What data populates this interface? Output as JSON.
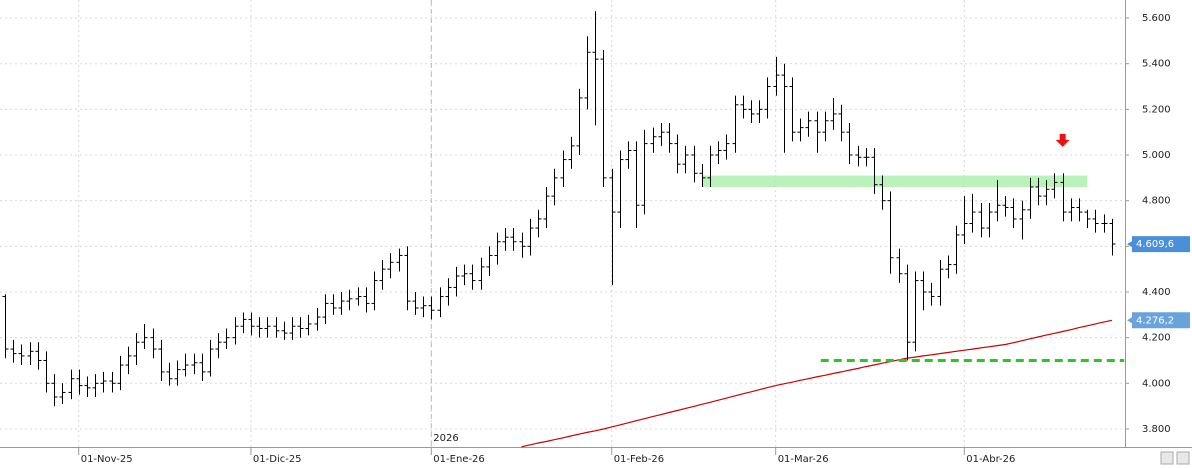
{
  "chart_data": {
    "type": "ohlc",
    "ylim": [
      3721,
      5679
    ],
    "xlim": [
      -0.6,
      136.6
    ],
    "yticks": [
      {
        "value": 3800,
        "label": "3.800"
      },
      {
        "value": 4000,
        "label": "4.000"
      },
      {
        "value": 4200,
        "label": "4.200"
      },
      {
        "value": 4400,
        "label": "4.400"
      },
      {
        "value": 4600,
        "label": "4.600"
      },
      {
        "value": 4800,
        "label": "4.800"
      },
      {
        "value": 5000,
        "label": "5.000"
      },
      {
        "value": 5200,
        "label": "5.200"
      },
      {
        "value": 5400,
        "label": "5.400"
      },
      {
        "value": 5600,
        "label": "5.600"
      }
    ],
    "xticks": [
      {
        "value": 9,
        "label": "01-Nov-25"
      },
      {
        "value": 30,
        "label": "01-Dic-25"
      },
      {
        "value": 52,
        "label": "01-Ene-26"
      },
      {
        "value": 74,
        "label": "01-Feb-26"
      },
      {
        "value": 94,
        "label": "01-Mar-26"
      },
      {
        "value": 117,
        "label": "01-Abr-26"
      }
    ],
    "year_marker": {
      "x": 52,
      "label": "2026"
    },
    "grid": true,
    "color": "#000000",
    "open": [
      4380,
      4150,
      4130,
      4120,
      4140,
      4100,
      4000,
      3940,
      3960,
      4020,
      3990,
      3980,
      4000,
      4010,
      4000,
      4080,
      4120,
      4180,
      4200,
      4150,
      4050,
      4020,
      4060,
      4080,
      4090,
      4050,
      4150,
      4180,
      4200,
      4250,
      4280,
      4250,
      4240,
      4250,
      4230,
      4220,
      4250,
      4240,
      4260,
      4290,
      4350,
      4330,
      4360,
      4370,
      4380,
      4350,
      4450,
      4500,
      4530,
      4560,
      4360,
      4330,
      4340,
      4320,
      4380,
      4420,
      4470,
      4480,
      4450,
      4510,
      4560,
      4620,
      4640,
      4620,
      4600,
      4680,
      4720,
      4820,
      4900,
      4980,
      5040,
      5250,
      5450,
      5420,
      4900,
      4750,
      4980,
      5020,
      4780,
      5050,
      5080,
      5100,
      5050,
      4960,
      5000,
      4920,
      4900,
      5000,
      5020,
      5050,
      5220,
      5200,
      5180,
      5200,
      5300,
      5350,
      5300,
      5100,
      5120,
      5150,
      5100,
      5150,
      5180,
      5100,
      5000,
      4990,
      4990,
      4870,
      4800,
      4550,
      4480,
      4180,
      4450,
      4400,
      4380,
      4500,
      4520,
      4650,
      4700,
      4750,
      4680,
      4750,
      4780,
      4770,
      4720,
      4760,
      4860,
      4820,
      4850,
      4880,
      4750,
      4770,
      4750,
      4720,
      4700,
      4700
    ],
    "high": [
      4390,
      4190,
      4170,
      4180,
      4180,
      4140,
      4040,
      4000,
      4060,
      4060,
      4030,
      4040,
      4050,
      4050,
      4120,
      4160,
      4220,
      4260,
      4240,
      4190,
      4090,
      4100,
      4130,
      4130,
      4130,
      4190,
      4220,
      4240,
      4290,
      4310,
      4310,
      4290,
      4290,
      4290,
      4270,
      4290,
      4290,
      4300,
      4330,
      4390,
      4390,
      4400,
      4410,
      4420,
      4420,
      4490,
      4540,
      4570,
      4590,
      4600,
      4400,
      4380,
      4380,
      4420,
      4460,
      4510,
      4520,
      4520,
      4550,
      4600,
      4660,
      4680,
      4680,
      4660,
      4720,
      4760,
      4860,
      4940,
      5020,
      5080,
      5290,
      5520,
      5630,
      5460,
      4940,
      5020,
      5060,
      5060,
      5110,
      5120,
      5140,
      5140,
      5090,
      5040,
      5040,
      4960,
      5040,
      5060,
      5090,
      5260,
      5260,
      5240,
      5240,
      5340,
      5430,
      5400,
      5340,
      5160,
      5190,
      5190,
      5190,
      5250,
      5220,
      5140,
      5040,
      5030,
      5030,
      4910,
      4840,
      4590,
      4520,
      4490,
      4490,
      4440,
      4540,
      4560,
      4690,
      4820,
      4830,
      4790,
      4790,
      4890,
      4820,
      4810,
      4800,
      4900,
      4900,
      4890,
      4920,
      4920,
      4810,
      4810,
      4760,
      4760,
      4740,
      4720
    ],
    "low": [
      4110,
      4090,
      4080,
      4080,
      4060,
      3960,
      3900,
      3910,
      3930,
      3950,
      3940,
      3940,
      3960,
      3960,
      3970,
      4040,
      4080,
      4150,
      4110,
      4010,
      3990,
      3990,
      4030,
      4040,
      4010,
      4030,
      4110,
      4150,
      4170,
      4220,
      4210,
      4200,
      4200,
      4200,
      4190,
      4190,
      4200,
      4210,
      4230,
      4260,
      4300,
      4300,
      4320,
      4340,
      4310,
      4320,
      4410,
      4460,
      4490,
      4320,
      4300,
      4290,
      4280,
      4290,
      4340,
      4380,
      4430,
      4410,
      4410,
      4470,
      4520,
      4580,
      4580,
      4550,
      4560,
      4640,
      4680,
      4780,
      4860,
      4940,
      5000,
      5200,
      5130,
      4860,
      4430,
      4680,
      4940,
      4680,
      4740,
      5010,
      5040,
      5010,
      4920,
      4920,
      4880,
      4860,
      4860,
      4960,
      4980,
      5010,
      5160,
      5140,
      5140,
      5160,
      5260,
      5010,
      5060,
      5060,
      5080,
      5010,
      5060,
      5110,
      5060,
      4960,
      4950,
      4950,
      4830,
      4760,
      4480,
      4440,
      4100,
      4140,
      4320,
      4340,
      4340,
      4460,
      4480,
      4610,
      4660,
      4640,
      4640,
      4710,
      4730,
      4680,
      4630,
      4720,
      4780,
      4780,
      4810,
      4710,
      4710,
      4710,
      4680,
      4660,
      4660,
      4560
    ],
    "close": [
      4150,
      4130,
      4120,
      4140,
      4100,
      4000,
      3940,
      3960,
      4020,
      3990,
      3980,
      4000,
      4010,
      4000,
      4080,
      4120,
      4180,
      4200,
      4150,
      4050,
      4020,
      4060,
      4080,
      4090,
      4050,
      4150,
      4180,
      4200,
      4250,
      4280,
      4250,
      4240,
      4250,
      4230,
      4220,
      4250,
      4240,
      4260,
      4290,
      4350,
      4330,
      4360,
      4370,
      4380,
      4350,
      4450,
      4500,
      4530,
      4560,
      4360,
      4330,
      4340,
      4320,
      4380,
      4420,
      4470,
      4480,
      4450,
      4510,
      4560,
      4620,
      4640,
      4620,
      4600,
      4680,
      4720,
      4820,
      4900,
      4980,
      5040,
      5250,
      5450,
      5420,
      4900,
      4750,
      4980,
      5020,
      4780,
      5050,
      5080,
      5100,
      5050,
      4960,
      5000,
      4920,
      4900,
      5000,
      5020,
      5050,
      5220,
      5200,
      5180,
      5200,
      5300,
      5350,
      5300,
      5100,
      5120,
      5150,
      5100,
      5150,
      5180,
      5100,
      5000,
      4990,
      4990,
      4870,
      4800,
      4550,
      4480,
      4180,
      4450,
      4400,
      4380,
      4500,
      4520,
      4650,
      4700,
      4750,
      4680,
      4750,
      4780,
      4770,
      4720,
      4760,
      4860,
      4820,
      4850,
      4880,
      4750,
      4770,
      4750,
      4720,
      4700,
      4700,
      4610
    ],
    "moving_average": {
      "color": "#cc0000",
      "values": [
        null,
        null,
        null,
        null,
        null,
        null,
        null,
        null,
        null,
        null,
        null,
        null,
        null,
        null,
        null,
        null,
        null,
        null,
        null,
        null,
        null,
        null,
        null,
        null,
        null,
        null,
        null,
        null,
        null,
        null,
        null,
        null,
        null,
        null,
        null,
        null,
        null,
        null,
        null,
        null,
        null,
        null,
        null,
        null,
        null,
        null,
        null,
        null,
        null,
        null,
        null,
        null,
        null,
        null,
        null,
        null,
        null,
        null,
        null,
        null,
        null,
        null,
        null,
        3722,
        3730,
        3738,
        3745,
        3753,
        3761,
        3769,
        3777,
        3785,
        3792,
        3800,
        3809,
        3818,
        3827,
        3836,
        3845,
        3854,
        3863,
        3872,
        3881,
        3890,
        3899,
        3908,
        3917,
        3926,
        3935,
        3945,
        3954,
        3963,
        3972,
        3981,
        3990,
        3998,
        4005,
        4013,
        4020,
        4028,
        4035,
        4043,
        4050,
        4058,
        4065,
        4073,
        4080,
        4088,
        4095,
        4103,
        4110,
        4115,
        4120,
        4125,
        4130,
        4135,
        4140,
        4145,
        4150,
        4155,
        4160,
        4165,
        4170,
        4178,
        4186,
        4195,
        4203,
        4211,
        4219,
        4227,
        4235,
        4244,
        4252,
        4260,
        4268,
        4276
      ]
    },
    "zone": {
      "x": [
        85,
        132
      ],
      "y": [
        4860,
        4910
      ],
      "color": "#a8f0a8"
    },
    "support_line": {
      "x": [
        99.5,
        136.5
      ],
      "y": 4100,
      "color": "#22cc22"
    },
    "arrow": {
      "x": 129,
      "y": 5040,
      "color": "#ee1111"
    },
    "last_labels": [
      {
        "value": 4609.6,
        "label": "4.609,6",
        "color": "#4a90d9"
      },
      {
        "value": 4276.2,
        "label": "4.276,2",
        "color": "#6aa3dc"
      }
    ]
  }
}
